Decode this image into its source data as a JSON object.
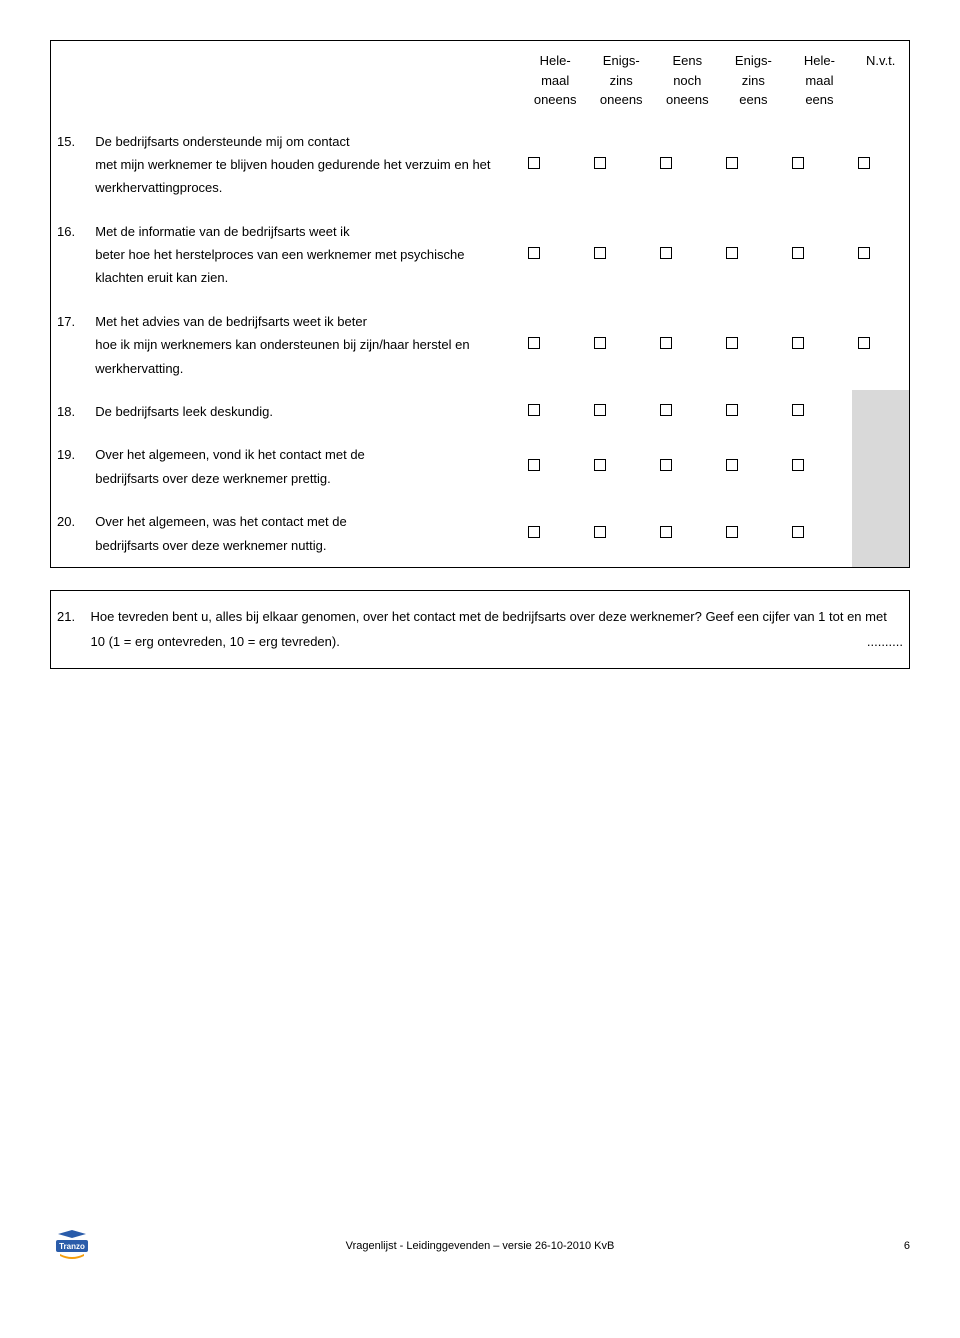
{
  "headers": {
    "c1": "Hele-\nmaal\noneens",
    "c2": "Enigs-\nzins\noneens",
    "c3": "Eens\nnoch\noneens",
    "c4": "Enigs-\nzins\neens",
    "c5": "Hele-\nmaal\neens",
    "c6": "N.v.t."
  },
  "rows": [
    {
      "num": "15.",
      "text_lead": "De bedrijfsarts ondersteunde mij om contact",
      "text_rest": "met mijn werknemer te blijven houden gedurende het verzuim en het werkhervattingproces.",
      "nvt": true
    },
    {
      "num": "16.",
      "text_lead": "Met de informatie van de bedrijfsarts weet ik",
      "text_rest": "beter hoe het herstelproces van een werknemer met psychische klachten eruit kan zien.",
      "nvt": true
    },
    {
      "num": "17.",
      "text_lead": "Met het advies van de bedrijfsarts weet ik beter",
      "text_rest": "hoe ik mijn werknemers kan ondersteunen bij zijn/haar herstel en werkhervatting.",
      "nvt": true
    },
    {
      "num": "18.",
      "text_lead": "De bedrijfsarts leek deskundig.",
      "text_rest": "",
      "nvt": false
    },
    {
      "num": "19.",
      "text_lead": "Over het algemeen, vond ik het contact met de",
      "text_rest": "bedrijfsarts over deze werknemer prettig.",
      "nvt": false
    },
    {
      "num": "20.",
      "text_lead": "Over het algemeen, was het contact met de",
      "text_rest": "bedrijfsarts over deze werknemer nuttig.",
      "nvt": false
    }
  ],
  "q21": {
    "num": "21.",
    "text": "Hoe tevreden bent u, alles bij elkaar genomen, over het contact met de bedrijfsarts over deze werknemer? Geef een cijfer van 1 tot en met 10 (1 = erg ontevreden, 10 = erg tevreden).",
    "dots": ".........."
  },
  "footer": {
    "center": "Vragenlijst - Leidinggevenden – versie 26-10-2010 KvB",
    "page": "6",
    "logo_text": "Tranzo"
  },
  "colors": {
    "na_bg": "#d9d9d9",
    "logo_blue": "#2a5caa"
  }
}
